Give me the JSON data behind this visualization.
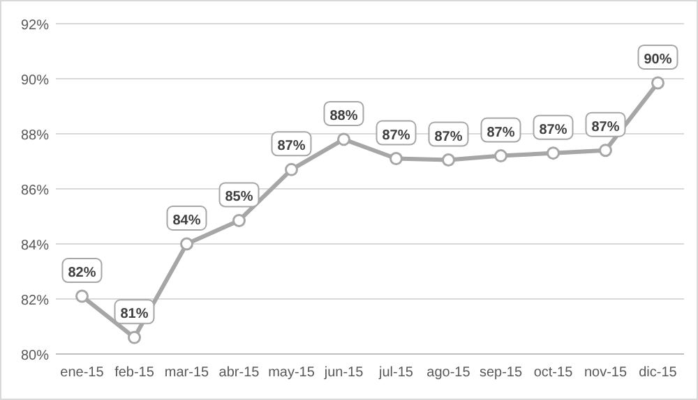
{
  "chart_data": {
    "type": "line",
    "categories": [
      "ene-15",
      "feb-15",
      "mar-15",
      "abr-15",
      "may-15",
      "jun-15",
      "jul-15",
      "ago-15",
      "sep-15",
      "oct-15",
      "nov-15",
      "dic-15"
    ],
    "series": [
      {
        "color": "#a6a6a6",
        "values": [
          82.1,
          80.6,
          84.0,
          84.85,
          86.7,
          87.8,
          87.1,
          87.05,
          87.2,
          87.3,
          87.4,
          89.85
        ],
        "value_labels": [
          "82%",
          "81%",
          "84%",
          "85%",
          "87%",
          "88%",
          "87%",
          "87%",
          "87%",
          "87%",
          "87%",
          "90%"
        ]
      }
    ],
    "ylim": [
      80,
      92
    ],
    "yticks": [
      {
        "value": 80,
        "label": "80%"
      },
      {
        "value": 82,
        "label": "82%"
      },
      {
        "value": 84,
        "label": "84%"
      },
      {
        "value": 86,
        "label": "86%"
      },
      {
        "value": 88,
        "label": "88%"
      },
      {
        "value": 90,
        "label": "90%"
      },
      {
        "value": 92,
        "label": "92%"
      }
    ],
    "grid": "y",
    "marker": "circle",
    "line_style": "solid"
  }
}
